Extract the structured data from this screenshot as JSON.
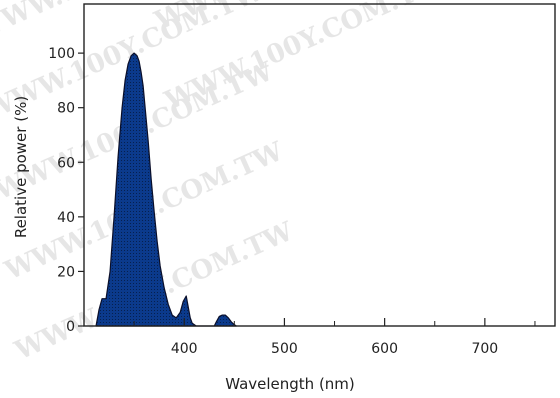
{
  "chart_data": {
    "type": "area",
    "xlabel": "Wavelength (nm)",
    "ylabel": "Relative power (%)",
    "xlim": [
      300,
      770
    ],
    "ylim": [
      0,
      118
    ],
    "xticks": [
      400,
      500,
      600,
      700
    ],
    "yticks": [
      0,
      20,
      40,
      60,
      80,
      100
    ],
    "grid": false,
    "series": [
      {
        "color": "#0b3a8c",
        "x": [
          312,
          315,
          318,
          322,
          326,
          330,
          334,
          338,
          341,
          344,
          347,
          350,
          353,
          355,
          357,
          359,
          361,
          364,
          367,
          370,
          373,
          376,
          380,
          384,
          388,
          392,
          396,
          399,
          402,
          404,
          406,
          408,
          410,
          412,
          414,
          418,
          425,
          430,
          432,
          435,
          438,
          441,
          444,
          447,
          450,
          452
        ],
        "y": [
          0,
          6,
          10,
          10,
          20,
          40,
          62,
          80,
          90,
          96,
          99,
          100,
          99,
          97,
          93,
          88,
          80,
          68,
          54,
          42,
          31,
          22,
          14,
          8,
          4,
          3,
          5,
          9,
          11,
          7,
          3,
          1,
          0.5,
          0,
          0,
          0,
          0,
          0,
          1.5,
          3.5,
          4,
          4,
          3,
          1.5,
          0.5,
          0
        ]
      }
    ],
    "watermark_text": "WWW.100Y.COM.TW"
  }
}
